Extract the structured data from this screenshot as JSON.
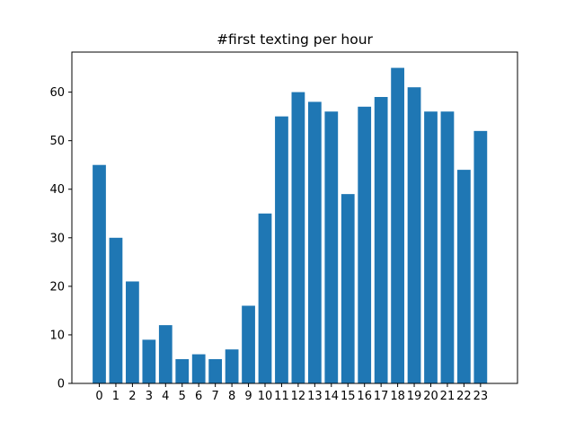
{
  "chart_data": {
    "type": "bar",
    "title": "#first texting per hour",
    "xlabel": "",
    "ylabel": "",
    "categories": [
      "0",
      "1",
      "2",
      "3",
      "4",
      "5",
      "6",
      "7",
      "8",
      "9",
      "10",
      "11",
      "12",
      "13",
      "14",
      "15",
      "16",
      "17",
      "18",
      "19",
      "20",
      "21",
      "22",
      "23"
    ],
    "values": [
      45,
      30,
      21,
      9,
      12,
      5,
      6,
      5,
      7,
      16,
      35,
      55,
      60,
      58,
      56,
      39,
      57,
      59,
      65,
      61,
      56,
      56,
      44,
      52
    ],
    "ylim": [
      0,
      68.25
    ],
    "yticks": [
      0,
      10,
      20,
      30,
      40,
      50,
      60
    ],
    "grid": false,
    "legend": "none",
    "bar_color": "#1f77b4"
  }
}
